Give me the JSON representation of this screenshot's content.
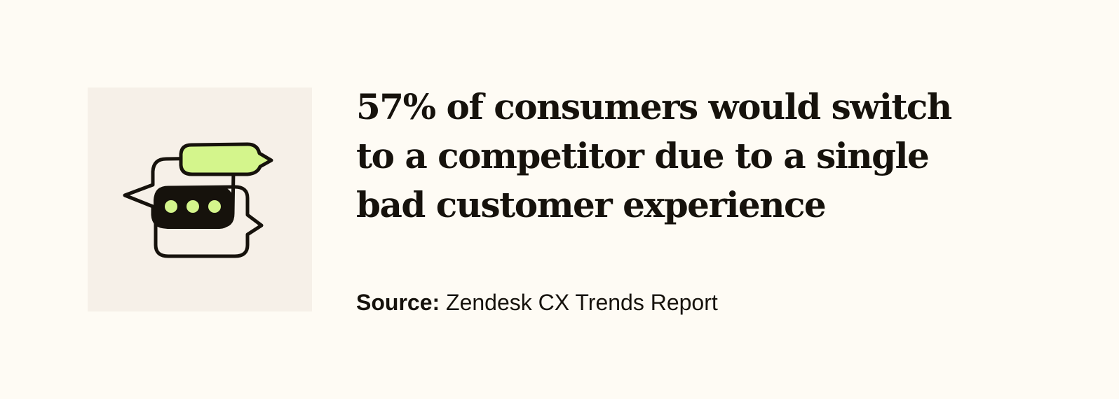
{
  "illustration": {
    "icon": "chat-bubbles-icon",
    "accent_color": "#d4f58c",
    "ink_color": "#16120c",
    "tile_color": "#f6f0e8"
  },
  "stat": {
    "headline": "57% of consumers would switch to a competitor due to a single bad customer experience"
  },
  "source": {
    "label": "Source:",
    "text": " Zendesk CX Trends Report"
  },
  "colors": {
    "background": "#fefbf4",
    "text": "#16120c"
  }
}
